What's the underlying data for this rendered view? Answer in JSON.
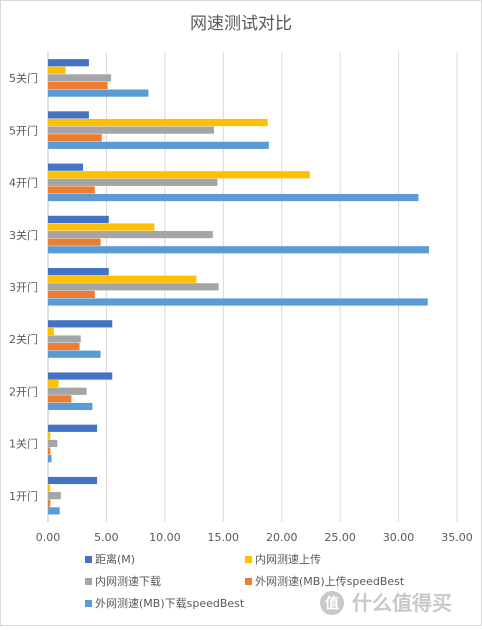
{
  "chart_data": {
    "type": "bar",
    "orientation": "horizontal",
    "title": "网速测试对比",
    "categories": [
      "5关门",
      "5开门",
      "4开门",
      "3关门",
      "3开门",
      "2关门",
      "2开门",
      "1关门",
      "1开门"
    ],
    "series": [
      {
        "name": "距离(M)",
        "color": "#4472c4",
        "values": [
          3.5,
          3.5,
          3.0,
          5.2,
          5.2,
          5.5,
          5.5,
          4.2,
          4.2
        ]
      },
      {
        "name": "内网测速上传",
        "color": "#ffc000",
        "values": [
          1.5,
          18.8,
          22.4,
          9.1,
          12.7,
          0.5,
          0.9,
          0.2,
          0.2
        ]
      },
      {
        "name": "内网测速下载",
        "color": "#a5a5a5",
        "values": [
          5.4,
          14.2,
          14.5,
          14.1,
          14.6,
          2.8,
          3.3,
          0.8,
          1.1
        ]
      },
      {
        "name": "外网测速(MB)上传speedBest",
        "color": "#ed7d31",
        "values": [
          5.1,
          4.6,
          4.0,
          4.5,
          4.0,
          2.7,
          2.0,
          0.2,
          0.2
        ]
      },
      {
        "name": "外网测速(MB)下载speedBest",
        "color": "#5b9bd5",
        "values": [
          8.6,
          18.9,
          31.7,
          32.6,
          32.5,
          4.5,
          3.8,
          0.3,
          1.0
        ]
      }
    ],
    "xticks": [
      "0.00",
      "5.00",
      "10.00",
      "15.00",
      "20.00",
      "25.00",
      "30.00",
      "35.00"
    ],
    "xlim": [
      0,
      35
    ],
    "grid": true,
    "legend_position": "bottom"
  },
  "watermark": {
    "text": "什么值得买",
    "glyph": "值"
  }
}
